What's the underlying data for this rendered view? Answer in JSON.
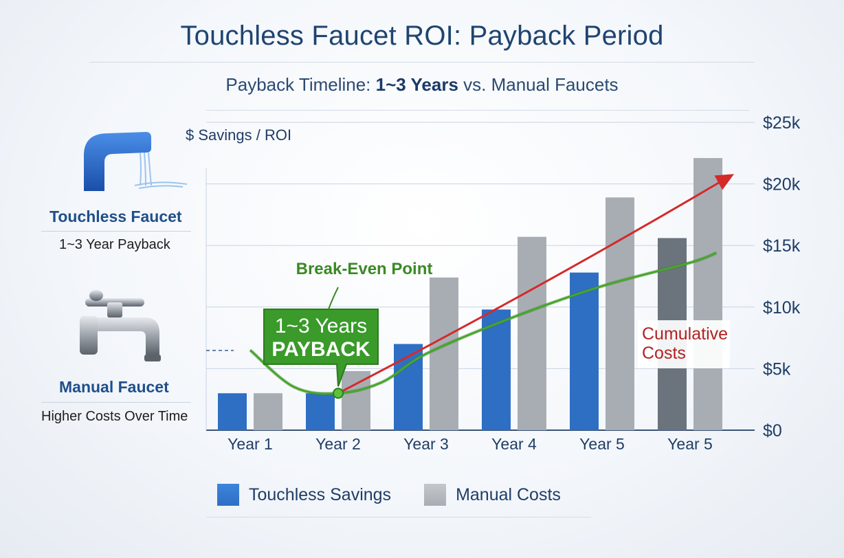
{
  "title": "Touchless Faucet ROI: Payback Period",
  "subtitle": {
    "prefix": "Payback Timeline: ",
    "emphasis": "1~3 Years",
    "suffix": " vs. Manual Faucets"
  },
  "sidebar": {
    "touchless": {
      "name": "Touchless Faucet",
      "desc": "1~3 Year Payback"
    },
    "manual": {
      "name": "Manual Faucet",
      "desc": "Higher Costs Over Time"
    }
  },
  "colors": {
    "touchless_bar": "#2e6fc4",
    "manual_bar": "#a8adb4",
    "savings_curve": "#4aa52b",
    "cost_arrow": "#d42a2a",
    "callout": "#3a9a2a",
    "axis_text": "#1f3d66"
  },
  "chart_data": {
    "type": "bar",
    "ylabel": "$ Savings / ROI",
    "right_ticks": [
      "$25k",
      "$20k",
      "$15k",
      "$10k",
      "$5k",
      "$0"
    ],
    "ylim": [
      0,
      25000
    ],
    "categories": [
      "Year 1",
      "Year 2",
      "Year 3",
      "Year 4",
      "Year 5",
      "Year 5"
    ],
    "series": [
      {
        "name": "Touchless Savings",
        "values": [
          3000,
          3000,
          7000,
          9800,
          12800,
          null
        ]
      },
      {
        "name": "Manual Costs",
        "values": [
          3000,
          4800,
          12400,
          15700,
          18900,
          22100
        ]
      }
    ],
    "extra_dark_bars": [
      {
        "category_index": 5,
        "value": 15600
      }
    ],
    "savings_curve": [
      {
        "x": 0.0,
        "y": 6500
      },
      {
        "x": 0.5,
        "y": 3500
      },
      {
        "x": 1.0,
        "y": 3000
      },
      {
        "x": 1.5,
        "y": 3900
      },
      {
        "x": 2.0,
        "y": 6200
      },
      {
        "x": 3.0,
        "y": 9200
      },
      {
        "x": 4.0,
        "y": 11700
      },
      {
        "x": 5.0,
        "y": 13600
      },
      {
        "x": 5.3,
        "y": 14400
      }
    ],
    "cost_arrow": [
      {
        "x": 1.0,
        "y": 3000
      },
      {
        "x": 5.5,
        "y": 20800
      }
    ],
    "break_even": {
      "x": 1.0,
      "y": 3000
    },
    "annotations": {
      "break_even_label": "Break-Even Point",
      "callout_line1": "1~3 Years",
      "callout_line2": "PAYBACK",
      "cumulative_line1": "Cumulative",
      "cumulative_line2": "Costs"
    },
    "grid": true,
    "legend": "bottom"
  }
}
